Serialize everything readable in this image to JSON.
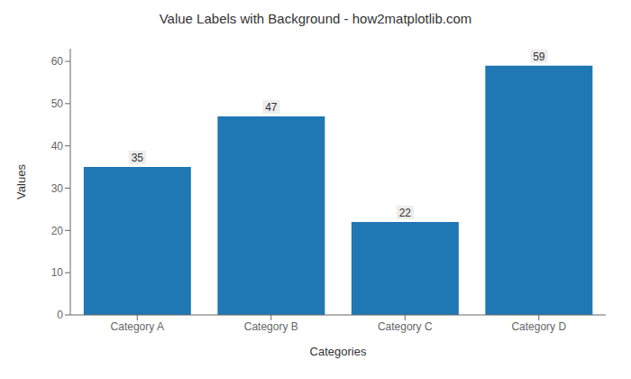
{
  "chart_data": {
    "type": "bar",
    "title": "Value Labels with Background - how2matplotlib.com",
    "xlabel": "Categories",
    "ylabel": "Values",
    "categories": [
      "Category A",
      "Category B",
      "Category C",
      "Category D"
    ],
    "values": [
      35,
      47,
      22,
      59
    ],
    "color": "#1f77b4",
    "ylim": [
      0,
      63
    ],
    "yticks": [
      0,
      10,
      20,
      30,
      40,
      50,
      60
    ],
    "grid": false,
    "data_labels": true
  }
}
